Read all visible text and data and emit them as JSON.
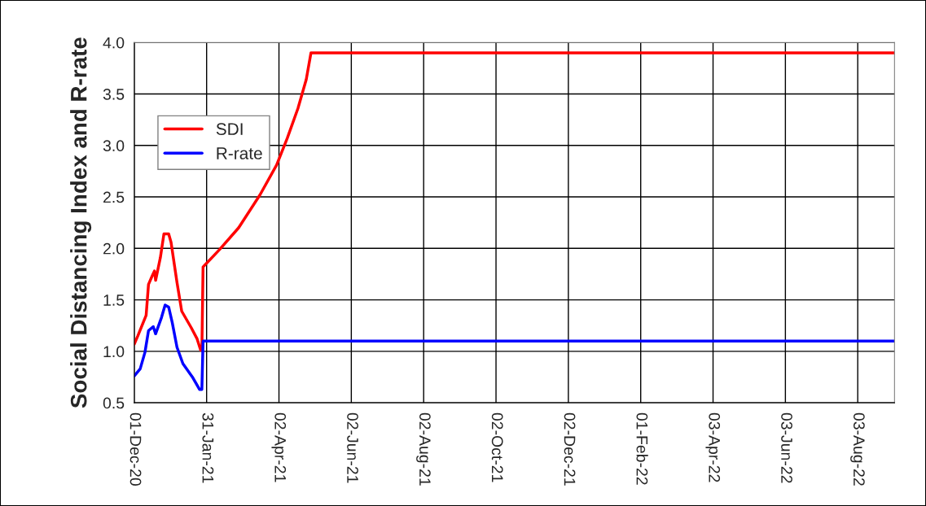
{
  "chart_data": {
    "type": "line",
    "ylabel": "Social Distancing Index and R-rate",
    "series": [
      {
        "name": "SDI",
        "color": "#ff0000",
        "x": [
          "2020-12-01",
          "2020-12-04",
          "2020-12-11",
          "2020-12-13",
          "2020-12-16",
          "2020-12-18",
          "2020-12-19",
          "2020-12-23",
          "2020-12-26",
          "2020-12-30",
          "2021-01-01",
          "2021-01-06",
          "2021-01-10",
          "2021-01-18",
          "2021-01-23",
          "2021-01-26",
          "2021-01-27",
          "2021-01-28",
          "2021-02-11",
          "2021-02-27",
          "2021-03-17",
          "2021-03-31",
          "2021-04-09",
          "2021-04-18",
          "2021-04-25",
          "2021-04-29",
          "2022-09-03"
        ],
        "values": [
          1.07,
          1.15,
          1.35,
          1.65,
          1.73,
          1.78,
          1.69,
          1.91,
          2.14,
          2.14,
          2.06,
          1.67,
          1.39,
          1.23,
          1.12,
          1.01,
          1.01,
          1.82,
          1.99,
          2.2,
          2.52,
          2.81,
          3.07,
          3.36,
          3.64,
          3.9,
          3.9
        ]
      },
      {
        "name": "R-rate",
        "color": "#0000ff",
        "x": [
          "2020-12-01",
          "2020-12-06",
          "2020-12-10",
          "2020-12-13",
          "2020-12-17",
          "2020-12-19",
          "2020-12-24",
          "2020-12-27",
          "2020-12-30",
          "2021-01-02",
          "2021-01-06",
          "2021-01-11",
          "2021-01-19",
          "2021-01-25",
          "2021-01-27",
          "2021-01-28",
          "2022-09-03"
        ],
        "values": [
          0.76,
          0.83,
          0.99,
          1.2,
          1.24,
          1.17,
          1.33,
          1.45,
          1.43,
          1.28,
          1.04,
          0.88,
          0.75,
          0.63,
          0.63,
          1.1,
          1.1
        ]
      }
    ],
    "xlim": [
      "2020-12-01",
      "2022-09-03"
    ],
    "xticks": [
      {
        "value": "2020-12-01",
        "label": "01-Dec-20"
      },
      {
        "value": "2021-01-31",
        "label": "31-Jan-21"
      },
      {
        "value": "2021-04-02",
        "label": "02-Apr-21"
      },
      {
        "value": "2021-06-02",
        "label": "02-Jun-21"
      },
      {
        "value": "2021-08-02",
        "label": "02-Aug-21"
      },
      {
        "value": "2021-10-02",
        "label": "02-Oct-21"
      },
      {
        "value": "2021-12-02",
        "label": "02-Dec-21"
      },
      {
        "value": "2022-02-01",
        "label": "01-Feb-22"
      },
      {
        "value": "2022-04-03",
        "label": "03-Apr-22"
      },
      {
        "value": "2022-06-03",
        "label": "03-Jun-22"
      },
      {
        "value": "2022-08-03",
        "label": "03-Aug-22"
      }
    ],
    "ylim": [
      0.5,
      4.0
    ],
    "yticks": [
      {
        "value": 0.5,
        "label": "0.5"
      },
      {
        "value": 1.0,
        "label": "1.0"
      },
      {
        "value": 1.5,
        "label": "1.5"
      },
      {
        "value": 2.0,
        "label": "2.0"
      },
      {
        "value": 2.5,
        "label": "2.5"
      },
      {
        "value": 3.0,
        "label": "3.0"
      },
      {
        "value": 3.5,
        "label": "3.5"
      },
      {
        "value": 4.0,
        "label": "4.0"
      }
    ],
    "grid": true,
    "legend": "top left",
    "line_style": "solid",
    "marker": "none"
  }
}
